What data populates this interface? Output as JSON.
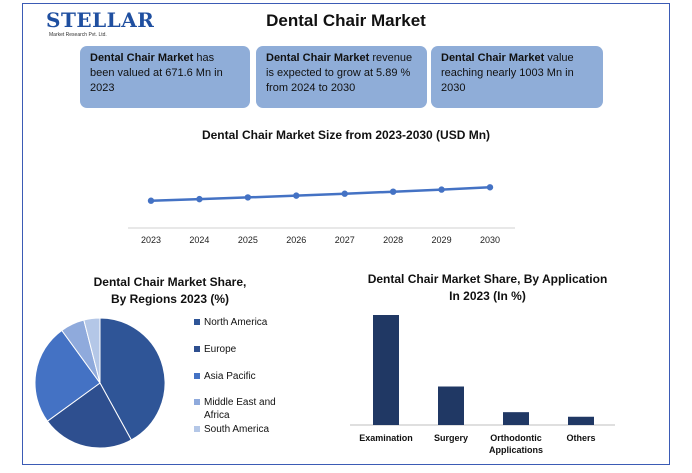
{
  "header": {
    "logo_text": "STELLAR",
    "logo_sub": "Market Research Pvt. Ltd.",
    "title": "Dental Chair Market"
  },
  "info_cards": [
    {
      "bold": "Dental Chair Market",
      "text": " has been valued at 671.6 Mn in 2023"
    },
    {
      "bold": "Dental Chair Market",
      "text": " revenue is expected to grow at 5.89 % from 2024 to 2030"
    },
    {
      "bold": "Dental Chair Market",
      "text": " value reaching nearly 1003 Mn in 2030"
    }
  ],
  "chart_data": [
    {
      "type": "line",
      "title": "Dental Chair  Market Size from 2023-2030 (USD Mn)",
      "x": [
        "2023",
        "2024",
        "2025",
        "2026",
        "2027",
        "2028",
        "2029",
        "2030"
      ],
      "y": [
        671.6,
        711,
        753,
        797,
        844,
        894,
        946,
        1003
      ],
      "ylim": [
        0,
        1300
      ],
      "color": "#4472c4",
      "grid": false
    },
    {
      "type": "pie",
      "title_line1": "Dental Chair Market Share,",
      "title_line2": "By Regions 2023 (%)",
      "labels": [
        "North America",
        "Europe",
        "Asia Pacific",
        "Middle East and Africa",
        "South America"
      ],
      "values": [
        42,
        23,
        25,
        6,
        4
      ],
      "colors": [
        "#2f5597",
        "#2e4f8f",
        "#4472c4",
        "#8faadc",
        "#b4c7e7"
      ],
      "legend": "right"
    },
    {
      "type": "bar",
      "title_line1": "Dental Chair Market Share, By Application",
      "title_line2": "In 2023 (In %)",
      "categories": [
        [
          "Examination"
        ],
        [
          "Surgery"
        ],
        [
          "Orthodontic",
          "Applications"
        ],
        [
          "Others"
        ]
      ],
      "values": [
        60,
        21,
        7,
        4.5
      ],
      "ylim": [
        0,
        65
      ],
      "color": "#203864"
    }
  ]
}
